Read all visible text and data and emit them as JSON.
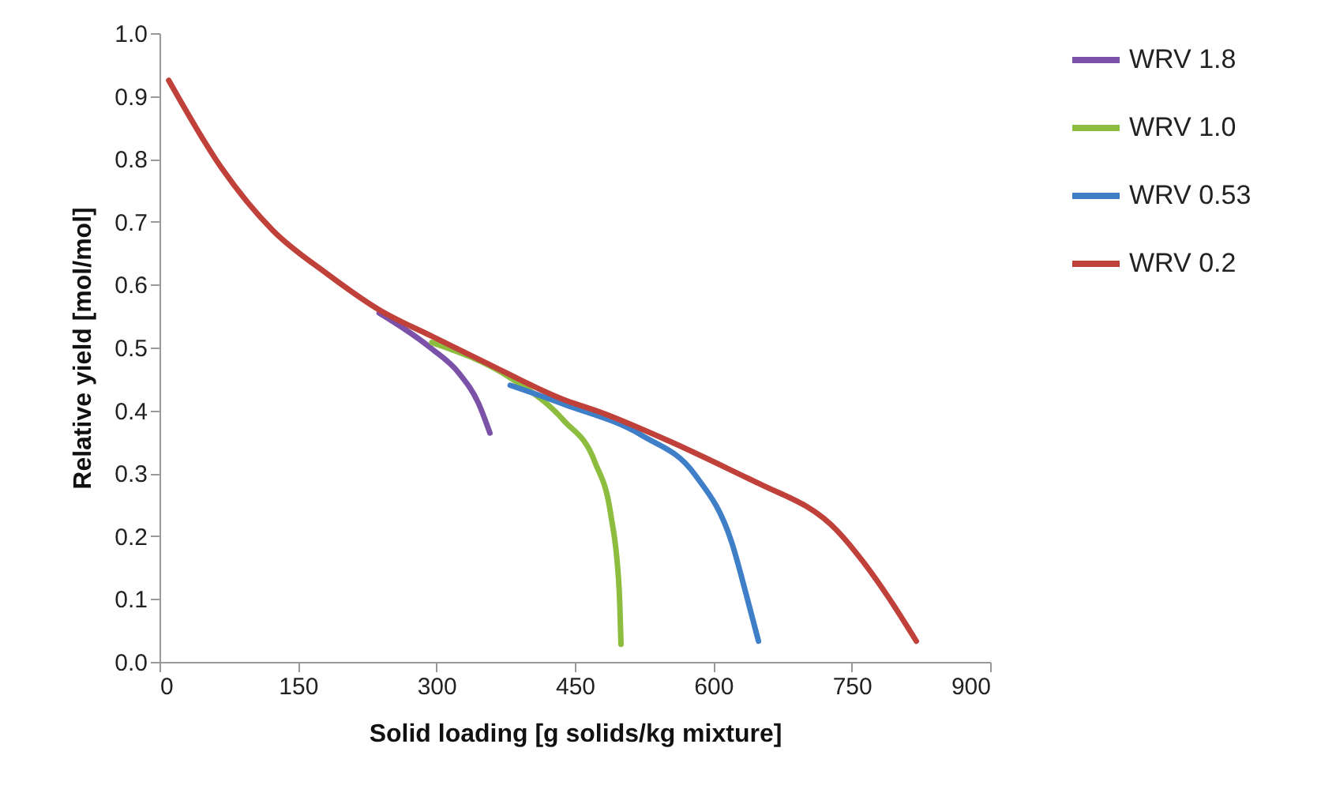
{
  "chart_data": {
    "type": "line",
    "xlabel": "Solid loading [g solids/kg mixture]",
    "ylabel": "Relative yield [mol/mol]",
    "xlim": [
      0,
      900
    ],
    "xticks": [
      0,
      150,
      300,
      450,
      600,
      750,
      900
    ],
    "ylim": [
      0,
      1.0
    ],
    "yticks": [
      {
        "value": 0,
        "label": "0.0"
      },
      0.1,
      0.2,
      0.3,
      0.4,
      0.5,
      0.6,
      0.7,
      0.8,
      0.9,
      {
        "value": 1,
        "label": "1.0"
      }
    ],
    "grid": false,
    "legend": "right",
    "marker": "none",
    "line_style": "solid",
    "series": [
      {
        "name": "WRV 1.8",
        "color": "#7b52a8",
        "x": [
          238,
          295,
          324,
          346,
          358
        ],
        "values": [
          0.555,
          0.498,
          0.46,
          0.41,
          0.364
        ]
      },
      {
        "name": "WRV 1.0",
        "color": "#8cbd3f",
        "x": [
          295,
          380,
          438,
          472,
          489,
          498,
          500
        ],
        "values": [
          0.508,
          0.452,
          0.384,
          0.317,
          0.234,
          0.116,
          0.028
        ]
      },
      {
        "name": "WRV 0.53",
        "color": "#3f7fc8",
        "x": [
          380,
          438,
          523,
          580,
          620,
          637,
          649
        ],
        "values": [
          0.44,
          0.41,
          0.36,
          0.298,
          0.19,
          0.1,
          0.033
        ]
      },
      {
        "name": "WRV 0.2",
        "color": "#c0403a",
        "x": [
          10,
          67,
          123,
          181,
          238,
          295,
          352,
          438,
          478,
          551,
          632,
          649,
          734,
          763,
          791,
          820
        ],
        "values": [
          0.925,
          0.786,
          0.686,
          0.618,
          0.56,
          0.518,
          0.477,
          0.417,
          0.397,
          0.352,
          0.296,
          0.284,
          0.209,
          0.158,
          0.1,
          0.033
        ]
      }
    ]
  }
}
